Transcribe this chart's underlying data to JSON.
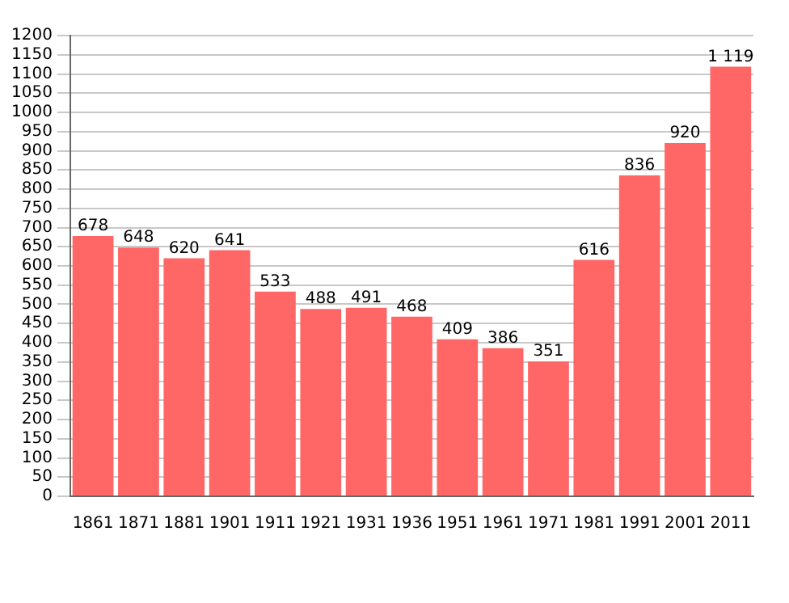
{
  "chart_data": {
    "type": "bar",
    "categories": [
      "1861",
      "1871",
      "1881",
      "1901",
      "1911",
      "1921",
      "1931",
      "1936",
      "1951",
      "1961",
      "1971",
      "1981",
      "1991",
      "2001",
      "2011"
    ],
    "values": [
      678,
      648,
      620,
      641,
      533,
      488,
      491,
      468,
      409,
      386,
      351,
      616,
      836,
      920,
      1119
    ],
    "value_labels": [
      "678",
      "648",
      "620",
      "641",
      "533",
      "488",
      "491",
      "468",
      "409",
      "386",
      "351",
      "616",
      "836",
      "920",
      "1 119"
    ],
    "color": "#ff6666",
    "ylim": [
      0,
      1200
    ],
    "yticks": [
      0,
      50,
      100,
      150,
      200,
      250,
      300,
      350,
      400,
      450,
      500,
      550,
      600,
      650,
      700,
      750,
      800,
      850,
      900,
      950,
      1000,
      1050,
      1100,
      1150,
      1200
    ],
    "grid": "y"
  }
}
